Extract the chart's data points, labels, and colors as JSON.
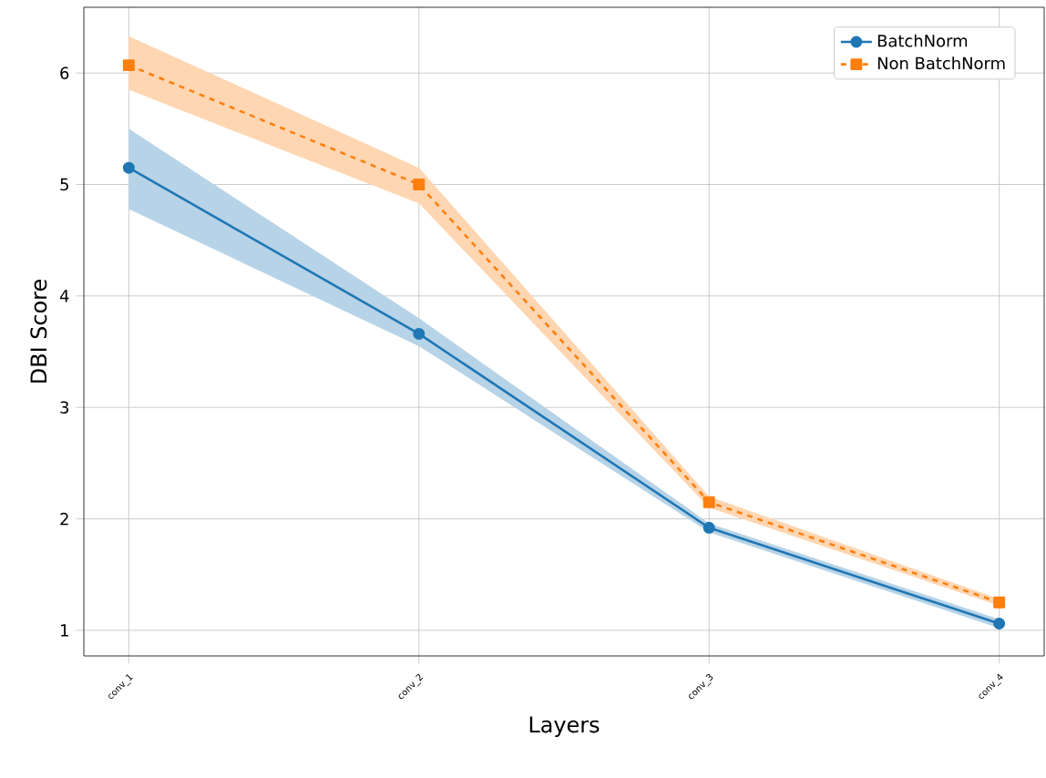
{
  "chart_data": {
    "type": "line",
    "xlabel": "Layers",
    "ylabel": "DBI Score",
    "categories": [
      "conv_1",
      "conv_2",
      "conv_3",
      "conv_4"
    ],
    "series": [
      {
        "name": "BatchNorm",
        "color": "#1f77b4",
        "marker": "circle",
        "line_style": "solid",
        "values": [
          5.15,
          3.66,
          1.92,
          1.06
        ],
        "lower": [
          4.78,
          3.55,
          1.88,
          1.02
        ],
        "upper": [
          5.5,
          3.8,
          1.96,
          1.1
        ]
      },
      {
        "name": "Non BatchNorm",
        "color": "#ff7f0e",
        "marker": "square",
        "line_style": "dashed",
        "values": [
          6.07,
          5.0,
          2.15,
          1.25
        ],
        "lower": [
          5.85,
          4.83,
          2.1,
          1.22
        ],
        "upper": [
          6.33,
          5.15,
          2.2,
          1.28
        ]
      }
    ],
    "ylim": [
      0.77,
      6.59
    ],
    "yticks": [
      1,
      2,
      3,
      4,
      5,
      6
    ],
    "grid": true,
    "legend": "top right"
  }
}
